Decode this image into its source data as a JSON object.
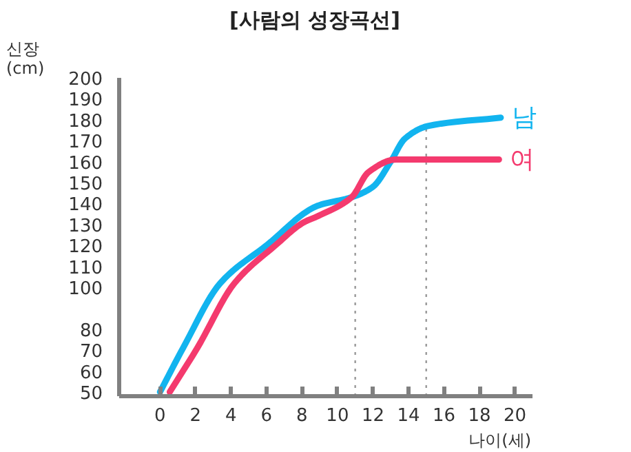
{
  "chart_data": {
    "type": "line",
    "title": "[사람의 성장곡선]",
    "xlabel": "나이(세)",
    "ylabel": "신장\n(cm)",
    "xlim": [
      -2.3,
      21
    ],
    "xticks": [
      0,
      2,
      4,
      6,
      8,
      10,
      12,
      14,
      16,
      18,
      20
    ],
    "ylim": [
      48,
      200
    ],
    "yticks": [
      50,
      60,
      70,
      80,
      100,
      110,
      120,
      130,
      140,
      150,
      160,
      170,
      180,
      190,
      200
    ],
    "grid": false,
    "legend": false,
    "marker": "none",
    "line_style": "solid",
    "ref_lines": [
      {
        "axis": "x",
        "value": 11,
        "color": "#999999",
        "line_style": "dotted"
      },
      {
        "axis": "x",
        "value": 15,
        "color": "#999999",
        "line_style": "dotted"
      }
    ],
    "series": [
      {
        "name": "남",
        "color": "#12b4ef",
        "x": [
          0,
          1.3,
          3.4,
          6.0,
          8.9,
          10.8,
          12,
          13,
          13.8,
          15.1,
          19.2
        ],
        "values": [
          50,
          71,
          102,
          120,
          139,
          143,
          148,
          160,
          171,
          177,
          181
        ]
      },
      {
        "name": "여",
        "color": "#f43a6e",
        "x": [
          0.55,
          2.1,
          4.2,
          6.5,
          8.1,
          8.9,
          10.8,
          11.75,
          13.3,
          15,
          19.1
        ],
        "values": [
          50,
          71,
          102,
          120,
          131,
          134,
          143,
          155,
          161,
          161,
          161
        ]
      }
    ]
  }
}
